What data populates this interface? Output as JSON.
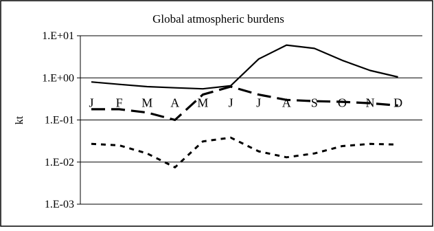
{
  "chart_data": {
    "type": "line",
    "title": "Global atmospheric burdens",
    "xlabel": "",
    "ylabel": "kt",
    "y_scale": "log",
    "ylim": [
      0.001,
      10
    ],
    "y_tick_values": [
      10,
      1,
      0.1,
      0.01,
      0.001
    ],
    "y_tick_labels": [
      "1.E+01",
      "1.E+00",
      "1.E-01",
      "1.E-02",
      "1.E-03"
    ],
    "categories": [
      "J",
      "F",
      "M",
      "A",
      "M",
      "J",
      "J",
      "A",
      "S",
      "O",
      "N",
      "D"
    ],
    "grid": true,
    "legend": "none",
    "series": [
      {
        "style": "solid",
        "color": "#000000",
        "values": [
          0.8,
          0.7,
          0.62,
          0.58,
          0.55,
          0.65,
          2.8,
          6.0,
          5.0,
          2.6,
          1.5,
          1.05
        ]
      },
      {
        "style": "long-dash",
        "color": "#000000",
        "values": [
          0.18,
          0.18,
          0.15,
          0.1,
          0.4,
          0.62,
          0.4,
          0.3,
          0.28,
          0.27,
          0.25,
          0.22
        ]
      },
      {
        "style": "short-dash",
        "color": "#000000",
        "values": [
          0.027,
          0.025,
          0.016,
          0.0075,
          0.031,
          0.038,
          0.018,
          0.013,
          0.016,
          0.024,
          0.027,
          0.026
        ]
      }
    ]
  }
}
